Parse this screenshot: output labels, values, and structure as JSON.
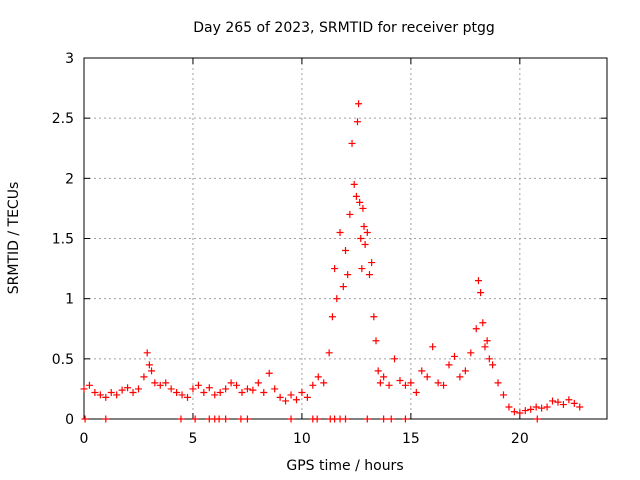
{
  "chart_data": {
    "type": "scatter",
    "title": "Day 265 of 2023, SRMTID for receiver ptgg",
    "xlabel": "GPS time / hours",
    "ylabel": "SRMTID / TECUs",
    "xlim": [
      0,
      24
    ],
    "ylim": [
      0,
      3
    ],
    "xticks": [
      0,
      5,
      10,
      15,
      20
    ],
    "xtick_labels": [
      "0",
      "5",
      "10",
      "15",
      "20"
    ],
    "yticks": [
      0,
      0.5,
      1,
      1.5,
      2,
      2.5,
      3
    ],
    "ytick_labels": [
      "0",
      "0.5",
      "1",
      "1.5",
      "2",
      "2.5",
      "3"
    ],
    "grid": true,
    "marker": "+",
    "color": "#ff0000",
    "series": [
      {
        "name": "SRMTID",
        "x": [
          0.0,
          0.25,
          0.5,
          0.75,
          1.0,
          1.25,
          1.5,
          1.75,
          2.0,
          2.25,
          2.5,
          2.75,
          2.9,
          3.0,
          3.1,
          3.25,
          3.5,
          3.75,
          4.0,
          4.25,
          4.5,
          4.75,
          5.0,
          5.25,
          5.5,
          5.75,
          6.0,
          6.25,
          6.5,
          6.75,
          7.0,
          7.25,
          7.5,
          7.75,
          8.0,
          8.25,
          8.5,
          8.75,
          9.0,
          9.25,
          9.5,
          9.75,
          10.0,
          10.25,
          10.5,
          10.75,
          11.0,
          11.25,
          11.4,
          11.5,
          11.6,
          11.75,
          11.9,
          12.0,
          12.1,
          12.2,
          12.3,
          12.4,
          12.5,
          12.55,
          12.6,
          12.65,
          12.7,
          12.75,
          12.8,
          12.85,
          12.9,
          13.0,
          13.1,
          13.2,
          13.3,
          13.4,
          13.5,
          13.6,
          13.75,
          14.0,
          14.25,
          14.5,
          14.75,
          15.0,
          15.25,
          15.5,
          15.75,
          16.0,
          16.25,
          16.5,
          16.75,
          17.0,
          17.25,
          17.5,
          17.75,
          18.0,
          18.1,
          18.2,
          18.3,
          18.4,
          18.5,
          18.6,
          18.75,
          19.0,
          19.25,
          19.5,
          19.75,
          20.0,
          20.25,
          20.5,
          20.75,
          21.0,
          21.25,
          21.5,
          21.75,
          22.0,
          22.25,
          22.5,
          22.75
        ],
        "y": [
          0.25,
          0.28,
          0.22,
          0.2,
          0.18,
          0.22,
          0.2,
          0.24,
          0.26,
          0.22,
          0.25,
          0.35,
          0.55,
          0.45,
          0.4,
          0.3,
          0.28,
          0.3,
          0.25,
          0.22,
          0.2,
          0.18,
          0.25,
          0.28,
          0.22,
          0.26,
          0.2,
          0.22,
          0.25,
          0.3,
          0.28,
          0.22,
          0.25,
          0.24,
          0.3,
          0.22,
          0.38,
          0.25,
          0.18,
          0.15,
          0.2,
          0.16,
          0.22,
          0.18,
          0.28,
          0.35,
          0.3,
          0.55,
          0.85,
          1.25,
          1.0,
          1.55,
          1.1,
          1.4,
          1.2,
          1.7,
          2.29,
          1.95,
          1.85,
          2.47,
          2.62,
          1.8,
          1.5,
          1.25,
          1.75,
          1.6,
          1.45,
          1.55,
          1.2,
          1.3,
          0.85,
          0.65,
          0.4,
          0.3,
          0.35,
          0.28,
          0.5,
          0.32,
          0.28,
          0.3,
          0.22,
          0.4,
          0.35,
          0.6,
          0.3,
          0.28,
          0.45,
          0.52,
          0.35,
          0.4,
          0.55,
          0.75,
          1.15,
          1.05,
          0.8,
          0.6,
          0.65,
          0.5,
          0.45,
          0.3,
          0.2,
          0.1,
          0.06,
          0.05,
          0.07,
          0.08,
          0.1,
          0.09,
          0.1,
          0.15,
          0.14,
          0.12,
          0.16,
          0.13,
          0.1
        ]
      },
      {
        "name": "gap markers",
        "x": [
          0.05,
          1.0,
          4.45,
          5.1,
          5.75,
          6.0,
          6.2,
          6.5,
          7.2,
          7.5,
          9.5,
          10.5,
          10.7,
          11.3,
          11.5,
          11.75,
          12.0,
          13.0,
          13.75,
          14.1,
          14.75,
          20.8
        ],
        "y": [
          0,
          0,
          0,
          0,
          0,
          0,
          0,
          0,
          0,
          0,
          0,
          0,
          0,
          0,
          0,
          0,
          0,
          0,
          0,
          0,
          0,
          0
        ]
      }
    ]
  }
}
